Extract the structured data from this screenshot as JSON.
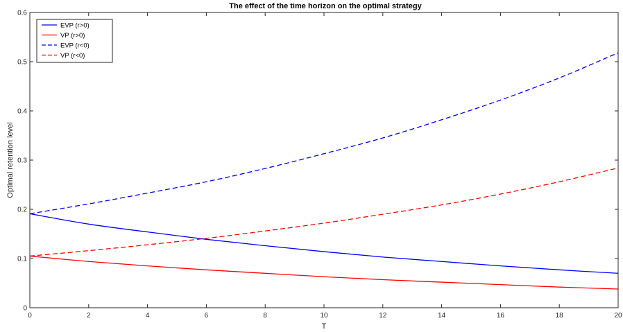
{
  "chart_data": {
    "type": "line",
    "title": "The effect of the time horizon on the optimal strategy",
    "xlabel": "T",
    "ylabel": "Optimal retention level",
    "xlim": [
      0,
      20
    ],
    "ylim": [
      0,
      0.6
    ],
    "x_ticks": [
      "0",
      "2",
      "4",
      "6",
      "8",
      "10",
      "12",
      "14",
      "16",
      "18",
      "20"
    ],
    "y_ticks": [
      "0",
      "0.1",
      "0.2",
      "0.3",
      "0.4",
      "0.5",
      "0.6"
    ],
    "grid": false,
    "legend_position": "top-left",
    "x": [
      0,
      2,
      4,
      6,
      8,
      10,
      12,
      14,
      16,
      18,
      20
    ],
    "series": [
      {
        "name": "EVP (r>0)",
        "color": "#0000ff",
        "line_style": "solid",
        "values": [
          0.191,
          0.17,
          0.154,
          0.139,
          0.126,
          0.114,
          0.103,
          0.094,
          0.085,
          0.077,
          0.07
        ]
      },
      {
        "name": "VP (r>0)",
        "color": "#ff0000",
        "line_style": "solid",
        "values": [
          0.105,
          0.094,
          0.085,
          0.077,
          0.07,
          0.063,
          0.057,
          0.052,
          0.047,
          0.042,
          0.038
        ]
      },
      {
        "name": "EVP (r<0)",
        "color": "#0000ff",
        "line_style": "dashed",
        "values": [
          0.191,
          0.211,
          0.233,
          0.256,
          0.283,
          0.313,
          0.345,
          0.382,
          0.422,
          0.467,
          0.518
        ]
      },
      {
        "name": "VP (r<0)",
        "color": "#ff0000",
        "line_style": "dashed",
        "values": [
          0.105,
          0.116,
          0.128,
          0.141,
          0.156,
          0.172,
          0.19,
          0.209,
          0.231,
          0.256,
          0.284
        ]
      }
    ]
  }
}
